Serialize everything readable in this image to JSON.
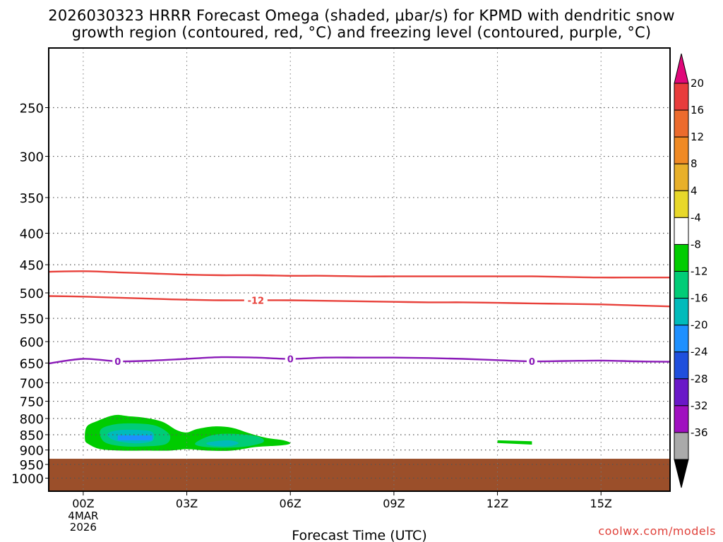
{
  "title_line1": "2026030323 HRRR Forecast Omega (shaded, μbar/s) for KPMD with dendritic snow",
  "title_line2": "growth region (contoured, red, °C) and freezing level (contoured, purple, °C)",
  "credit": "coolwx.com/models",
  "credit_color": "#e0413a",
  "chart_data": {
    "type": "time-height cross section",
    "title": "2026030323 HRRR Forecast Omega (shaded, μbar/s) for KPMD with dendritic snow growth region (contoured, red, °C) and freezing level (contoured, purple, °C)",
    "xlabel": "Forecast Time (UTC)",
    "ylabel": "",
    "x_ticks": [
      {
        "hour": 0,
        "label": "00Z",
        "sub": [
          "4MAR",
          "2026"
        ]
      },
      {
        "hour": 3,
        "label": "03Z",
        "sub": []
      },
      {
        "hour": 6,
        "label": "06Z",
        "sub": []
      },
      {
        "hour": 9,
        "label": "09Z",
        "sub": []
      },
      {
        "hour": 12,
        "label": "12Z",
        "sub": []
      },
      {
        "hour": 15,
        "label": "15Z",
        "sub": []
      }
    ],
    "xlim": [
      -1,
      17
    ],
    "y_scale": "log-pressure",
    "ylim": [
      200,
      1050
    ],
    "y_ticks": [
      250,
      300,
      350,
      400,
      450,
      500,
      550,
      600,
      650,
      700,
      750,
      800,
      850,
      900,
      950,
      1000
    ],
    "grid": true,
    "surface_pressure": 930,
    "surface_color": "#9b4f2a",
    "contours": [
      {
        "name": "dendritic snow growth",
        "color": "#e8403a",
        "label": "",
        "label_positions": [],
        "x": [
          -1,
          0,
          1,
          2,
          3,
          4,
          5,
          6,
          7,
          8,
          9,
          10,
          11,
          12,
          13,
          14,
          15,
          16,
          17
        ],
        "y": [
          462,
          461,
          463,
          465,
          467,
          468,
          468,
          469,
          469,
          470,
          470,
          470,
          470,
          470,
          470,
          471,
          472,
          472,
          472
        ]
      },
      {
        "name": "dendritic snow growth",
        "color": "#e8403a",
        "label": "-12",
        "label_positions": [
          5
        ],
        "x": [
          -1,
          0,
          1,
          2,
          3,
          4,
          5,
          6,
          7,
          8,
          9,
          10,
          11,
          12,
          13,
          14,
          15,
          16,
          17
        ],
        "y": [
          506,
          507,
          509,
          511,
          513,
          514,
          514,
          514,
          515,
          516,
          517,
          518,
          518,
          519,
          520,
          521,
          522,
          524,
          526
        ]
      },
      {
        "name": "freezing level",
        "color": "#8a1ab8",
        "label": "0",
        "label_positions": [
          1,
          6,
          13
        ],
        "x": [
          -1,
          0,
          1,
          2,
          3,
          4,
          5,
          6,
          7,
          8,
          9,
          10,
          11,
          12,
          13,
          14,
          15,
          16,
          17
        ],
        "y": [
          651,
          640,
          646,
          644,
          640,
          636,
          637,
          640,
          637,
          637,
          637,
          638,
          640,
          643,
          646,
          645,
          644,
          646,
          647
        ]
      }
    ],
    "shaded_regions": [
      {
        "level": "-4",
        "color": "#00cc00",
        "x": [
          0.05,
          0.1,
          0.4,
          0.9,
          1.3,
          1.8,
          2.3,
          2.7,
          3.0,
          3.3,
          3.8,
          4.3,
          4.8,
          5.3,
          5.8,
          6.0,
          5.7,
          5.0,
          4.3,
          3.6,
          3.0,
          2.5,
          1.8,
          1.1,
          0.5,
          0.15
        ],
        "y": [
          865,
          825,
          808,
          790,
          793,
          798,
          810,
          835,
          843,
          832,
          824,
          828,
          845,
          860,
          868,
          878,
          885,
          890,
          902,
          902,
          897,
          902,
          902,
          902,
          897,
          880
        ]
      },
      {
        "level": "-8",
        "color": "#00cc77",
        "x": [
          0.5,
          0.9,
          1.5,
          2.1,
          2.5,
          2.4,
          1.8,
          1.1,
          0.6
        ],
        "y": [
          835,
          818,
          815,
          822,
          850,
          880,
          888,
          887,
          872
        ]
      },
      {
        "level": "-8",
        "color": "#00cc77",
        "x": [
          3.3,
          3.8,
          4.5,
          5.1,
          5.2,
          4.6,
          3.8,
          3.3
        ],
        "y": [
          872,
          850,
          848,
          857,
          875,
          890,
          892,
          885
        ]
      },
      {
        "level": "-12",
        "color": "#00bbbb",
        "x": [
          0.7,
          1.0,
          1.6,
          2.0,
          2.0,
          1.5,
          0.9
        ],
        "y": [
          848,
          836,
          835,
          842,
          870,
          878,
          868
        ]
      },
      {
        "level": "-12",
        "color": "#00bbbb",
        "x": [
          3.6,
          4.2,
          4.5,
          4.2,
          3.7
        ],
        "y": [
          875,
          868,
          877,
          888,
          885
        ]
      },
      {
        "level": "-16",
        "color": "#1e90ff",
        "x": [
          1.0,
          2.0,
          2.0,
          1.0
        ],
        "y": [
          852,
          852,
          868,
          868
        ]
      },
      {
        "level": "-4",
        "color": "#00cc00",
        "x": [
          12.0,
          13.0,
          13.0,
          12.0
        ],
        "y": [
          868,
          871,
          882,
          877
        ]
      }
    ],
    "colorbar": {
      "labels": [
        "20",
        "16",
        "12",
        "8",
        "4",
        "-4",
        "-8",
        "-12",
        "-16",
        "-20",
        "-24",
        "-28",
        "-32",
        "-36"
      ],
      "top_arrow_color": "#e0087a",
      "bottom_arrow_color": "#000000",
      "colors": [
        "#e83c3c",
        "#ec6b2d",
        "#f08a24",
        "#e8b02a",
        "#e8d82a",
        "#ffffff",
        "#00cc00",
        "#00cc77",
        "#00bbbb",
        "#1e90ff",
        "#1f4fdd",
        "#6a18c8",
        "#a010c0",
        "#aaaaaa"
      ]
    }
  }
}
